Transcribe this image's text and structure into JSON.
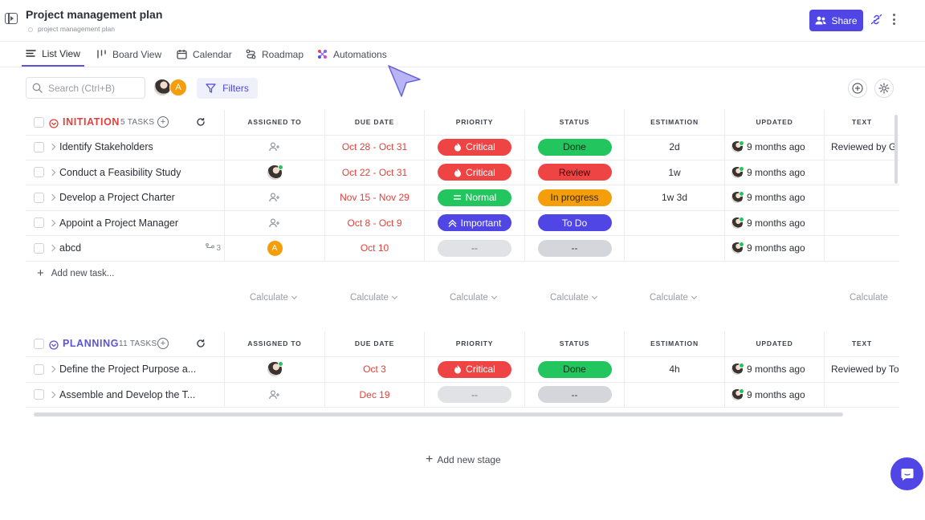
{
  "header": {
    "title": "Project management plan",
    "subtitle": "project management plan",
    "share_label": "Share"
  },
  "tabs": [
    {
      "label": "List View",
      "icon": "list-icon",
      "active": true
    },
    {
      "label": "Board View",
      "icon": "board-icon",
      "active": false
    },
    {
      "label": "Calendar",
      "icon": "calendar-icon",
      "active": false
    },
    {
      "label": "Roadmap",
      "icon": "roadmap-icon",
      "active": false
    },
    {
      "label": "Automations",
      "icon": "automations-icon",
      "active": false
    }
  ],
  "toolbar": {
    "search_placeholder": "Search (Ctrl+B)",
    "filters_label": "Filters",
    "assignee_initial": "A"
  },
  "columns": [
    "ASSIGNED TO",
    "DUE DATE",
    "PRIORITY",
    "STATUS",
    "ESTIMATION",
    "UPDATED",
    "TEXT"
  ],
  "stages": [
    {
      "name": "INITIATION",
      "count": "5 TASKS",
      "color": "#e0413a",
      "tasks": [
        {
          "name": "Identify Stakeholders",
          "due": "Oct 28 - Oct 31",
          "priority": "Critical",
          "status": "Done",
          "estimation": "2d",
          "updated": "9 months ago",
          "text": "Reviewed by G"
        },
        {
          "name": "Conduct a Feasibility Study",
          "due": "Oct 22 - Oct 31",
          "priority": "Critical",
          "status": "Review",
          "estimation": "1w",
          "updated": "9 months ago",
          "text": ""
        },
        {
          "name": "Develop a Project Charter",
          "due": "Nov 15 - Nov 29",
          "priority": "Normal",
          "status": "In progress",
          "estimation": "1w 3d",
          "updated": "9 months ago",
          "text": ""
        },
        {
          "name": "Appoint a Project Manager",
          "due": "Oct 8 - Oct 9",
          "priority": "Important",
          "status": "To Do",
          "estimation": "",
          "updated": "9 months ago",
          "text": ""
        },
        {
          "name": "abcd",
          "subtasks": "3",
          "assignee": "A",
          "due": "Oct 10",
          "priority": "--",
          "status": "--",
          "estimation": "",
          "updated": "9 months ago",
          "text": ""
        }
      ],
      "add_task_label": "Add new task...",
      "calculate_label": "Calculate"
    },
    {
      "name": "PLANNING",
      "count": "11 TASKS",
      "color": "#5b54d6",
      "tasks": [
        {
          "name": "Define the Project Purpose a...",
          "due": "Oct 3",
          "priority": "Critical",
          "status": "Done",
          "estimation": "4h",
          "updated": "9 months ago",
          "text": "Reviewed by To"
        },
        {
          "name": "Assemble and Develop the T...",
          "due": "Dec 19",
          "priority": "--",
          "status": "--",
          "estimation": "",
          "updated": "9 months ago",
          "text": ""
        }
      ]
    }
  ],
  "add_stage_label": "Add new stage",
  "colors": {
    "accent": "#4f46e5",
    "critical": "#ef4444",
    "normal": "#22c55e",
    "important": "#4f46e5",
    "done": "#22c55e",
    "review": "#ef4444",
    "in_progress": "#f59e0b",
    "todo": "#4f46e5"
  }
}
